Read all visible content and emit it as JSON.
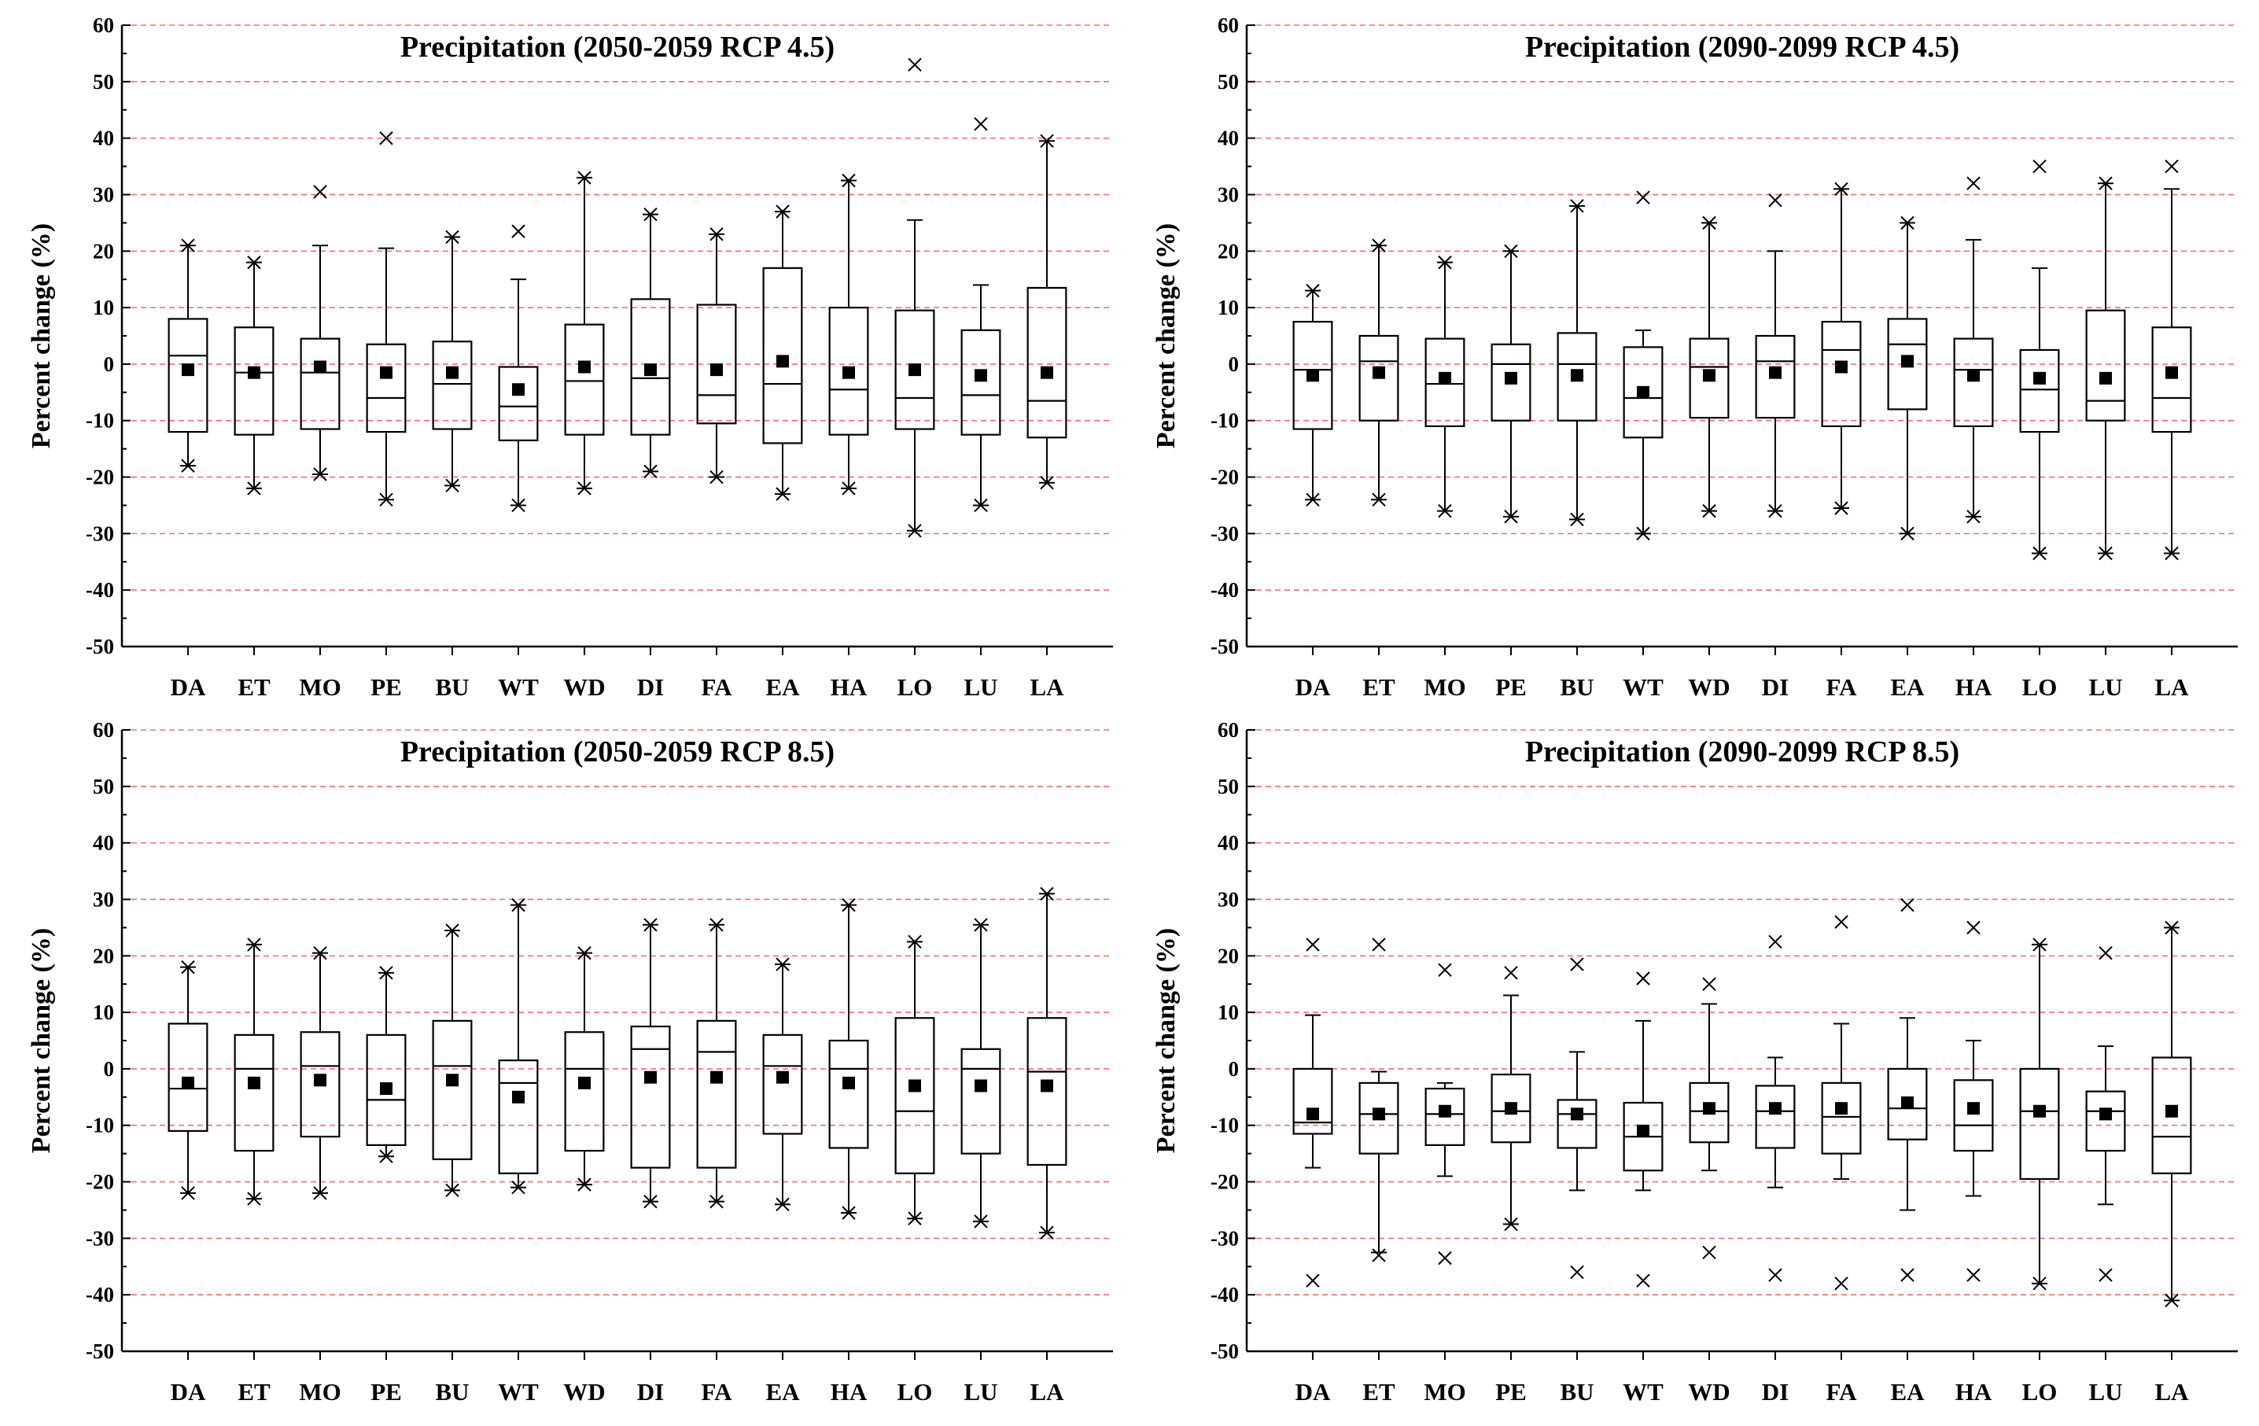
{
  "figure_colors": {
    "grid": "#ff6b6b",
    "ink": "#000000",
    "background": "#ffffff"
  },
  "chart_data": [
    {
      "type": "box",
      "panel": "top-left",
      "title": "Precipitation (2050-2059 RCP 4.5)",
      "xlabel": "",
      "ylabel": "Percent change (%)",
      "ylim": [
        -50,
        60
      ],
      "yticks": [
        60,
        50,
        40,
        30,
        20,
        10,
        0,
        -10,
        -20,
        -30,
        -40,
        -50
      ],
      "grid": "dashed horizontal at 10-unit intervals",
      "categories": [
        "DA",
        "ET",
        "MO",
        "PE",
        "BU",
        "WT",
        "WD",
        "DI",
        "FA",
        "EA",
        "HA",
        "LO",
        "LU",
        "LA"
      ],
      "boxes": [
        {
          "q1": -12,
          "median": 1.5,
          "q3": 8,
          "whislo": -18,
          "whishi": 21,
          "mean": -1,
          "fliers": [
            -18,
            21
          ]
        },
        {
          "q1": -12.5,
          "median": -1.5,
          "q3": 6.5,
          "whislo": -22,
          "whishi": 18,
          "mean": -1.5,
          "fliers": [
            -22,
            18
          ]
        },
        {
          "q1": -11.5,
          "median": -1.5,
          "q3": 4.5,
          "whislo": -19.5,
          "whishi": 21,
          "mean": -0.5,
          "fliers": [
            -19.5,
            30.5
          ]
        },
        {
          "q1": -12,
          "median": -6,
          "q3": 3.5,
          "whislo": -24,
          "whishi": 20.5,
          "mean": -1.5,
          "fliers": [
            -24,
            40
          ]
        },
        {
          "q1": -11.5,
          "median": -3.5,
          "q3": 4,
          "whislo": -21.5,
          "whishi": 22.5,
          "mean": -1.5,
          "fliers": [
            -21.5,
            22.5
          ]
        },
        {
          "q1": -13.5,
          "median": -7.5,
          "q3": -0.5,
          "whislo": -25,
          "whishi": 15,
          "mean": -4.5,
          "fliers": [
            -25,
            23.5
          ]
        },
        {
          "q1": -12.5,
          "median": -3,
          "q3": 7,
          "whislo": -22,
          "whishi": 33,
          "mean": -0.5,
          "fliers": [
            -22,
            33
          ]
        },
        {
          "q1": -12.5,
          "median": -2.5,
          "q3": 11.5,
          "whislo": -19,
          "whishi": 26.5,
          "mean": -1,
          "fliers": [
            -19,
            26.5
          ]
        },
        {
          "q1": -10.5,
          "median": -5.5,
          "q3": 10.5,
          "whislo": -20,
          "whishi": 23,
          "mean": -1,
          "fliers": [
            -20,
            23
          ]
        },
        {
          "q1": -14,
          "median": -3.5,
          "q3": 17,
          "whislo": -23,
          "whishi": 27,
          "mean": 0.5,
          "fliers": [
            -23,
            27
          ]
        },
        {
          "q1": -12.5,
          "median": -4.5,
          "q3": 10,
          "whislo": -22,
          "whishi": 32.5,
          "mean": -1.5,
          "fliers": [
            -22,
            32.5
          ]
        },
        {
          "q1": -11.5,
          "median": -6,
          "q3": 9.5,
          "whislo": -29.5,
          "whishi": 25.5,
          "mean": -1,
          "fliers": [
            -29.5,
            53
          ]
        },
        {
          "q1": -12.5,
          "median": -5.5,
          "q3": 6,
          "whislo": -25,
          "whishi": 14,
          "mean": -2,
          "fliers": [
            -25,
            42.5
          ]
        },
        {
          "q1": -13,
          "median": -6.5,
          "q3": 13.5,
          "whislo": -21,
          "whishi": 39.5,
          "mean": -1.5,
          "fliers": [
            -21,
            39.5
          ]
        }
      ]
    },
    {
      "type": "box",
      "panel": "top-right",
      "title": "Precipitation (2090-2099 RCP 4.5)",
      "xlabel": "",
      "ylabel": "Percent change (%)",
      "ylim": [
        -50,
        60
      ],
      "yticks": [
        60,
        50,
        40,
        30,
        20,
        10,
        0,
        -10,
        -20,
        -30,
        -40,
        -50
      ],
      "grid": "dashed horizontal at 10-unit intervals",
      "categories": [
        "DA",
        "ET",
        "MO",
        "PE",
        "BU",
        "WT",
        "WD",
        "DI",
        "FA",
        "EA",
        "HA",
        "LO",
        "LU",
        "LA"
      ],
      "boxes": [
        {
          "q1": -11.5,
          "median": -1,
          "q3": 7.5,
          "whislo": -24,
          "whishi": 13,
          "mean": -2,
          "fliers": [
            -24,
            13
          ]
        },
        {
          "q1": -10,
          "median": 0.5,
          "q3": 5,
          "whislo": -24,
          "whishi": 21,
          "mean": -1.5,
          "fliers": [
            -24,
            21
          ]
        },
        {
          "q1": -11,
          "median": -3.5,
          "q3": 4.5,
          "whislo": -26,
          "whishi": 18,
          "mean": -2.5,
          "fliers": [
            -26,
            18
          ]
        },
        {
          "q1": -10,
          "median": 0,
          "q3": 3.5,
          "whislo": -27,
          "whishi": 20,
          "mean": -2.5,
          "fliers": [
            -27,
            20
          ]
        },
        {
          "q1": -10,
          "median": 0,
          "q3": 5.5,
          "whislo": -27.5,
          "whishi": 28,
          "mean": -2,
          "fliers": [
            -27.5,
            28
          ]
        },
        {
          "q1": -13,
          "median": -6,
          "q3": 3,
          "whislo": -30,
          "whishi": 6,
          "mean": -5,
          "fliers": [
            -30,
            29.5
          ]
        },
        {
          "q1": -9.5,
          "median": -0.5,
          "q3": 4.5,
          "whislo": -26,
          "whishi": 25,
          "mean": -2,
          "fliers": [
            -26,
            25
          ]
        },
        {
          "q1": -9.5,
          "median": 0.5,
          "q3": 5,
          "whislo": -26,
          "whishi": 20,
          "mean": -1.5,
          "fliers": [
            -26,
            29
          ]
        },
        {
          "q1": -11,
          "median": 2.5,
          "q3": 7.5,
          "whislo": -25.5,
          "whishi": 31,
          "mean": -0.5,
          "fliers": [
            -25.5,
            31
          ]
        },
        {
          "q1": -8,
          "median": 3.5,
          "q3": 8,
          "whislo": -30,
          "whishi": 25,
          "mean": 0.5,
          "fliers": [
            -30,
            25
          ]
        },
        {
          "q1": -11,
          "median": -1,
          "q3": 4.5,
          "whislo": -27,
          "whishi": 22,
          "mean": -2,
          "fliers": [
            -27,
            32
          ]
        },
        {
          "q1": -12,
          "median": -4.5,
          "q3": 2.5,
          "whislo": -33.5,
          "whishi": 17,
          "mean": -2.5,
          "fliers": [
            -33.5,
            35
          ]
        },
        {
          "q1": -10,
          "median": -6.5,
          "q3": 9.5,
          "whislo": -33.5,
          "whishi": 32,
          "mean": -2.5,
          "fliers": [
            -33.5,
            32
          ]
        },
        {
          "q1": -12,
          "median": -6,
          "q3": 6.5,
          "whislo": -33.5,
          "whishi": 31,
          "mean": -1.5,
          "fliers": [
            -33.5,
            35
          ]
        }
      ]
    },
    {
      "type": "box",
      "panel": "bottom-left",
      "title": "Precipitation (2050-2059 RCP 8.5)",
      "xlabel": "",
      "ylabel": "Percent change (%)",
      "ylim": [
        -50,
        60
      ],
      "yticks": [
        60,
        50,
        40,
        30,
        20,
        10,
        0,
        -10,
        -20,
        -30,
        -40,
        -50
      ],
      "grid": "dashed horizontal at 10-unit intervals",
      "categories": [
        "DA",
        "ET",
        "MO",
        "PE",
        "BU",
        "WT",
        "WD",
        "DI",
        "FA",
        "EA",
        "HA",
        "LO",
        "LU",
        "LA"
      ],
      "boxes": [
        {
          "q1": -11,
          "median": -3.5,
          "q3": 8,
          "whislo": -22,
          "whishi": 18,
          "mean": -2.5,
          "fliers": [
            -22,
            18
          ]
        },
        {
          "q1": -14.5,
          "median": 0,
          "q3": 6,
          "whislo": -23,
          "whishi": 22,
          "mean": -2.5,
          "fliers": [
            -23,
            22
          ]
        },
        {
          "q1": -12,
          "median": 0.5,
          "q3": 6.5,
          "whislo": -22,
          "whishi": 20.5,
          "mean": -2,
          "fliers": [
            -22,
            20.5
          ]
        },
        {
          "q1": -13.5,
          "median": -5.5,
          "q3": 6,
          "whislo": -15.5,
          "whishi": 17,
          "mean": -3.5,
          "fliers": [
            -15.5,
            17
          ]
        },
        {
          "q1": -16,
          "median": 0.5,
          "q3": 8.5,
          "whislo": -21.5,
          "whishi": 24.5,
          "mean": -2,
          "fliers": [
            -21.5,
            24.5
          ]
        },
        {
          "q1": -18.5,
          "median": -2.5,
          "q3": 1.5,
          "whislo": -21,
          "whishi": 29,
          "mean": -5,
          "fliers": [
            -21,
            29
          ]
        },
        {
          "q1": -14.5,
          "median": 0,
          "q3": 6.5,
          "whislo": -20.5,
          "whishi": 20.5,
          "mean": -2.5,
          "fliers": [
            -20.5,
            20.5
          ]
        },
        {
          "q1": -17.5,
          "median": 3.5,
          "q3": 7.5,
          "whislo": -23.5,
          "whishi": 25.5,
          "mean": -1.5,
          "fliers": [
            -23.5,
            25.5
          ]
        },
        {
          "q1": -17.5,
          "median": 3,
          "q3": 8.5,
          "whislo": -23.5,
          "whishi": 25.5,
          "mean": -1.5,
          "fliers": [
            -23.5,
            25.5
          ]
        },
        {
          "q1": -11.5,
          "median": 0.5,
          "q3": 6,
          "whislo": -24,
          "whishi": 18.5,
          "mean": -1.5,
          "fliers": [
            -24,
            18.5
          ]
        },
        {
          "q1": -14,
          "median": 0,
          "q3": 5,
          "whislo": -25.5,
          "whishi": 29,
          "mean": -2.5,
          "fliers": [
            -25.5,
            29
          ]
        },
        {
          "q1": -18.5,
          "median": -7.5,
          "q3": 9,
          "whislo": -26.5,
          "whishi": 22.5,
          "mean": -3,
          "fliers": [
            -26.5,
            22.5
          ]
        },
        {
          "q1": -15,
          "median": 0,
          "q3": 3.5,
          "whislo": -27,
          "whishi": 25.5,
          "mean": -3,
          "fliers": [
            -27,
            25.5
          ]
        },
        {
          "q1": -17,
          "median": -0.5,
          "q3": 9,
          "whislo": -29,
          "whishi": 31,
          "mean": -3,
          "fliers": [
            -29,
            31
          ]
        }
      ]
    },
    {
      "type": "box",
      "panel": "bottom-right",
      "title": "Precipitation (2090-2099 RCP 8.5)",
      "xlabel": "",
      "ylabel": "Percent change (%)",
      "ylim": [
        -50,
        60
      ],
      "yticks": [
        60,
        50,
        40,
        30,
        20,
        10,
        0,
        -10,
        -20,
        -30,
        -40,
        -50
      ],
      "grid": "dashed horizontal at 10-unit intervals",
      "categories": [
        "DA",
        "ET",
        "MO",
        "PE",
        "BU",
        "WT",
        "WD",
        "DI",
        "FA",
        "EA",
        "HA",
        "LO",
        "LU",
        "LA"
      ],
      "boxes": [
        {
          "q1": -11.5,
          "median": -9.5,
          "q3": 0,
          "whislo": -17.5,
          "whishi": 9.5,
          "mean": -8,
          "fliers": [
            -37.5,
            22
          ]
        },
        {
          "q1": -15,
          "median": -8,
          "q3": -2.5,
          "whislo": -32.5,
          "whishi": -0.5,
          "mean": -8,
          "fliers": [
            -33,
            22
          ]
        },
        {
          "q1": -13.5,
          "median": -8,
          "q3": -3.5,
          "whislo": -19,
          "whishi": -2.5,
          "mean": -7.5,
          "fliers": [
            -33.5,
            17.5
          ]
        },
        {
          "q1": -13,
          "median": -7.5,
          "q3": -1,
          "whislo": -27.5,
          "whishi": 13,
          "mean": -7,
          "fliers": [
            -27.5,
            17
          ]
        },
        {
          "q1": -14,
          "median": -8,
          "q3": -5.5,
          "whislo": -21.5,
          "whishi": 3,
          "mean": -8,
          "fliers": [
            -36,
            18.5
          ]
        },
        {
          "q1": -18,
          "median": -12,
          "q3": -6,
          "whislo": -21.5,
          "whishi": 8.5,
          "mean": -11,
          "fliers": [
            -37.5,
            16
          ]
        },
        {
          "q1": -13,
          "median": -7.5,
          "q3": -2.5,
          "whislo": -18,
          "whishi": 11.5,
          "mean": -7,
          "fliers": [
            -32.5,
            15
          ]
        },
        {
          "q1": -14,
          "median": -7.5,
          "q3": -3,
          "whislo": -21,
          "whishi": 2,
          "mean": -7,
          "fliers": [
            -36.5,
            22.5
          ]
        },
        {
          "q1": -15,
          "median": -8.5,
          "q3": -2.5,
          "whislo": -19.5,
          "whishi": 8,
          "mean": -7,
          "fliers": [
            -38,
            26
          ]
        },
        {
          "q1": -12.5,
          "median": -7,
          "q3": 0,
          "whislo": -25,
          "whishi": 9,
          "mean": -6,
          "fliers": [
            -36.5,
            29
          ]
        },
        {
          "q1": -14.5,
          "median": -10,
          "q3": -2,
          "whislo": -22.5,
          "whishi": 5,
          "mean": -7,
          "fliers": [
            -36.5,
            25
          ]
        },
        {
          "q1": -19.5,
          "median": -7.5,
          "q3": 0,
          "whislo": -38,
          "whishi": 22,
          "mean": -7.5,
          "fliers": [
            -38,
            22
          ]
        },
        {
          "q1": -14.5,
          "median": -7.5,
          "q3": -4,
          "whislo": -24,
          "whishi": 4,
          "mean": -8,
          "fliers": [
            -36.5,
            20.5
          ]
        },
        {
          "q1": -18.5,
          "median": -12,
          "q3": 2,
          "whislo": -41,
          "whishi": 25,
          "mean": -7.5,
          "fliers": [
            -41,
            25
          ]
        }
      ]
    }
  ]
}
